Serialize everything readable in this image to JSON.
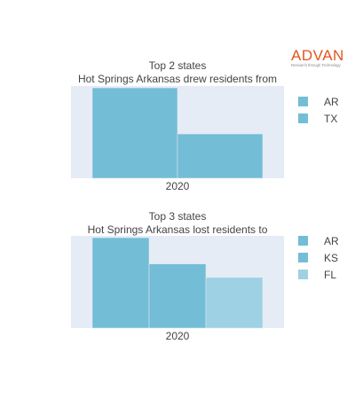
{
  "brand": {
    "name": "ADVAN",
    "tagline": "Research through Technology",
    "color": "#e2561f"
  },
  "chart_data": [
    {
      "type": "bar",
      "title_lines": [
        "Top 2 states",
        "Hot Springs Arkansas drew residents from"
      ],
      "categories": [
        "2020"
      ],
      "series": [
        {
          "name": "AR",
          "values": [
            1.0
          ],
          "color": "#74bdd6"
        },
        {
          "name": "TX",
          "values": [
            0.49
          ],
          "color": "#74bdd6"
        }
      ],
      "xlabel": "",
      "ylabel": "",
      "ylim": [
        0,
        1.02
      ],
      "grid": false,
      "legend": "right",
      "y_tick_labels_visible": false
    },
    {
      "type": "bar",
      "title_lines": [
        "Top 3 states",
        "Hot Springs Arkansas lost residents to"
      ],
      "categories": [
        "2020"
      ],
      "series": [
        {
          "name": "AR",
          "values": [
            1.0
          ],
          "color": "#74bdd6"
        },
        {
          "name": "KS",
          "values": [
            0.71
          ],
          "color": "#74bdd6"
        },
        {
          "name": "FL",
          "values": [
            0.56
          ],
          "color": "#9dd1e3"
        }
      ],
      "xlabel": "",
      "ylabel": "",
      "ylim": [
        0,
        1.02
      ],
      "grid": false,
      "legend": "right",
      "y_tick_labels_visible": false
    }
  ],
  "plot_background": "#e5ecf6"
}
